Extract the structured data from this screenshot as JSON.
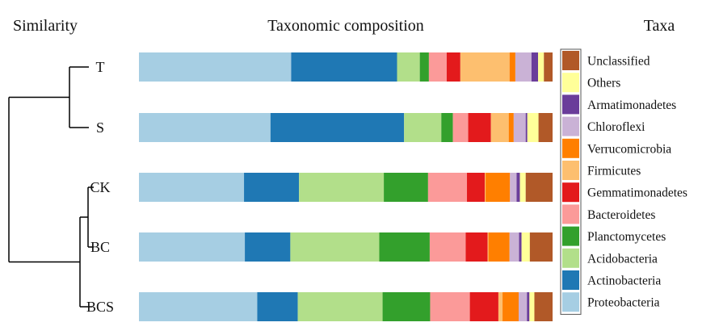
{
  "headers": {
    "left": "Similarity",
    "center": "Taxonomic composition",
    "right": "Taxa"
  },
  "chart_data": {
    "type": "bar",
    "orientation": "horizontal",
    "stacked": true,
    "normalized": true,
    "title": "Taxonomic composition",
    "categories": [
      "T",
      "S",
      "CK",
      "BC",
      "BCS"
    ],
    "series": [
      {
        "name": "Proteobacteria",
        "color": "#a6cee3",
        "values": [
          0.368,
          0.318,
          0.254,
          0.256,
          0.286
        ]
      },
      {
        "name": "Actinobacteria",
        "color": "#1f78b4",
        "values": [
          0.256,
          0.323,
          0.133,
          0.11,
          0.098
        ]
      },
      {
        "name": "Acidobacteria",
        "color": "#b2df8a",
        "values": [
          0.055,
          0.09,
          0.205,
          0.215,
          0.205
        ]
      },
      {
        "name": "Planctomycetes",
        "color": "#33a02c",
        "values": [
          0.022,
          0.028,
          0.107,
          0.122,
          0.115
        ]
      },
      {
        "name": "Bacteroidetes",
        "color": "#fb9a99",
        "values": [
          0.043,
          0.037,
          0.094,
          0.087,
          0.096
        ]
      },
      {
        "name": "Gemmatimonadetes",
        "color": "#e31a1c",
        "values": [
          0.033,
          0.055,
          0.043,
          0.053,
          0.069
        ]
      },
      {
        "name": "Firmicutes",
        "color": "#fdbf6f",
        "values": [
          0.119,
          0.043,
          0.002,
          0.002,
          0.01
        ]
      },
      {
        "name": "Verrucomicrobia",
        "color": "#ff7f00",
        "values": [
          0.014,
          0.012,
          0.059,
          0.051,
          0.039
        ]
      },
      {
        "name": "Chloroflexi",
        "color": "#cab2d6",
        "values": [
          0.039,
          0.029,
          0.016,
          0.023,
          0.02
        ]
      },
      {
        "name": "Armatimonadetes",
        "color": "#6a3d9a",
        "values": [
          0.016,
          0.004,
          0.008,
          0.006,
          0.006
        ]
      },
      {
        "name": "Others",
        "color": "#ffff99",
        "values": [
          0.014,
          0.027,
          0.014,
          0.02,
          0.012
        ]
      },
      {
        "name": "Unclassified",
        "color": "#b15928",
        "values": [
          0.021,
          0.034,
          0.065,
          0.055,
          0.044
        ]
      }
    ],
    "legend_title": "Taxa",
    "legend_position": "right",
    "legend_order": [
      "Unclassified",
      "Others",
      "Armatimonadetes",
      "Chloroflexi",
      "Verrucomicrobia",
      "Firmicutes",
      "Gemmatimonadetes",
      "Bacteroidetes",
      "Planctomycetes",
      "Acidobacteria",
      "Actinobacteria",
      "Proteobacteria"
    ],
    "dendrogram": {
      "title": "Similarity",
      "clusters": [
        [
          "T",
          "S"
        ],
        [
          [
            "CK",
            "BC"
          ],
          "BCS"
        ]
      ]
    },
    "grid": false
  }
}
